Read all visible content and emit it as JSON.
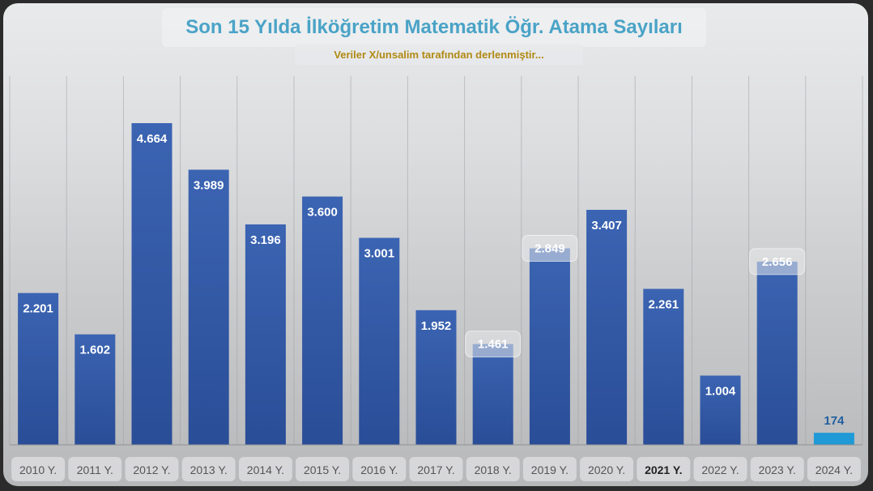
{
  "chart_data": {
    "type": "bar",
    "title": "Son 15 Yılda İlköğretim Matematik Öğr. Atama Sayıları",
    "subtitle": "Veriler X/unsalim tarafından derlenmiştir...",
    "categories": [
      "2010 Y.",
      "2011 Y.",
      "2012 Y.",
      "2013 Y.",
      "2014 Y.",
      "2015 Y.",
      "2016 Y.",
      "2017 Y.",
      "2018 Y.",
      "2019 Y.",
      "2020 Y.",
      "2021 Y.",
      "2022 Y.",
      "2023 Y.",
      "2024 Y."
    ],
    "values": [
      2201,
      1602,
      4664,
      3989,
      3196,
      3600,
      3001,
      1952,
      1461,
      2849,
      3407,
      2261,
      1004,
      2656,
      174
    ],
    "value_labels": [
      "2.201",
      "1.602",
      "4.664",
      "3.989",
      "3.196",
      "3.600",
      "3.001",
      "1.952",
      "1.461",
      "2.849",
      "3.407",
      "2.261",
      "1.004",
      "2.656",
      "174"
    ],
    "highlighted_value_labels": [
      "1.461",
      "2.849",
      "2.656"
    ],
    "ylim": [
      0,
      5000
    ],
    "grid": "vertical",
    "legend": "none",
    "colors": {
      "bar_top": "#3b64b2",
      "bar_bottom": "#2a4d97",
      "bar_highlight": "#1f9ad6",
      "highlight_bar_category": "2024 Y.",
      "title": "#4aa3c7",
      "subtitle": "#b08a14",
      "value_label_light": "#ffffff",
      "value_label_dark": "#1f5f9e",
      "tick_label": "#555555"
    }
  }
}
